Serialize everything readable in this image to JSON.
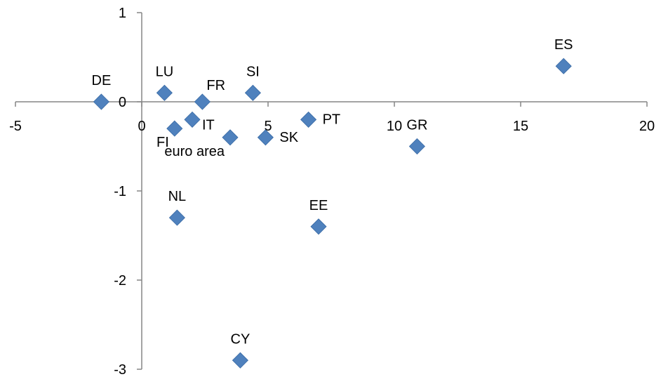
{
  "chart_data": {
    "type": "scatter",
    "title": "",
    "xlabel": "",
    "ylabel": "",
    "xlim": [
      -5,
      20
    ],
    "ylim": [
      -3,
      1
    ],
    "x_ticks": [
      -5,
      0,
      5,
      10,
      15,
      20
    ],
    "y_ticks": [
      -3,
      -2,
      -1,
      0,
      1
    ],
    "x_tick_labels": [
      "-5",
      "0",
      "5",
      "10",
      "15",
      "20"
    ],
    "y_tick_labels": [
      "-3",
      "-2",
      "-1",
      "0",
      "1"
    ],
    "grid": false,
    "legend": "none",
    "marker": "diamond",
    "marker_color": "#4F81BD",
    "points": [
      {
        "label": "DE",
        "x": -1.6,
        "y": 0.0,
        "label_pos": "above"
      },
      {
        "label": "LU",
        "x": 0.9,
        "y": 0.1,
        "label_pos": "above"
      },
      {
        "label": "FR",
        "x": 2.4,
        "y": 0.0,
        "label_pos": "above-right"
      },
      {
        "label": "SI",
        "x": 4.4,
        "y": 0.1,
        "label_pos": "above"
      },
      {
        "label": "ES",
        "x": 16.7,
        "y": 0.4,
        "label_pos": "above"
      },
      {
        "label": "IT",
        "x": 2.0,
        "y": -0.2,
        "label_pos": "below-right"
      },
      {
        "label": "FI",
        "x": 1.3,
        "y": -0.3,
        "label_pos": "below-left"
      },
      {
        "label": "euro area",
        "x": 3.5,
        "y": -0.4,
        "label_pos": "below-left"
      },
      {
        "label": "SK",
        "x": 4.9,
        "y": -0.4,
        "label_pos": "right"
      },
      {
        "label": "PT",
        "x": 6.6,
        "y": -0.2,
        "label_pos": "right"
      },
      {
        "label": "GR",
        "x": 10.9,
        "y": -0.5,
        "label_pos": "above"
      },
      {
        "label": "NL",
        "x": 1.4,
        "y": -1.3,
        "label_pos": "above"
      },
      {
        "label": "EE",
        "x": 7.0,
        "y": -1.4,
        "label_pos": "above"
      },
      {
        "label": "CY",
        "x": 3.9,
        "y": -2.9,
        "label_pos": "above"
      }
    ]
  }
}
